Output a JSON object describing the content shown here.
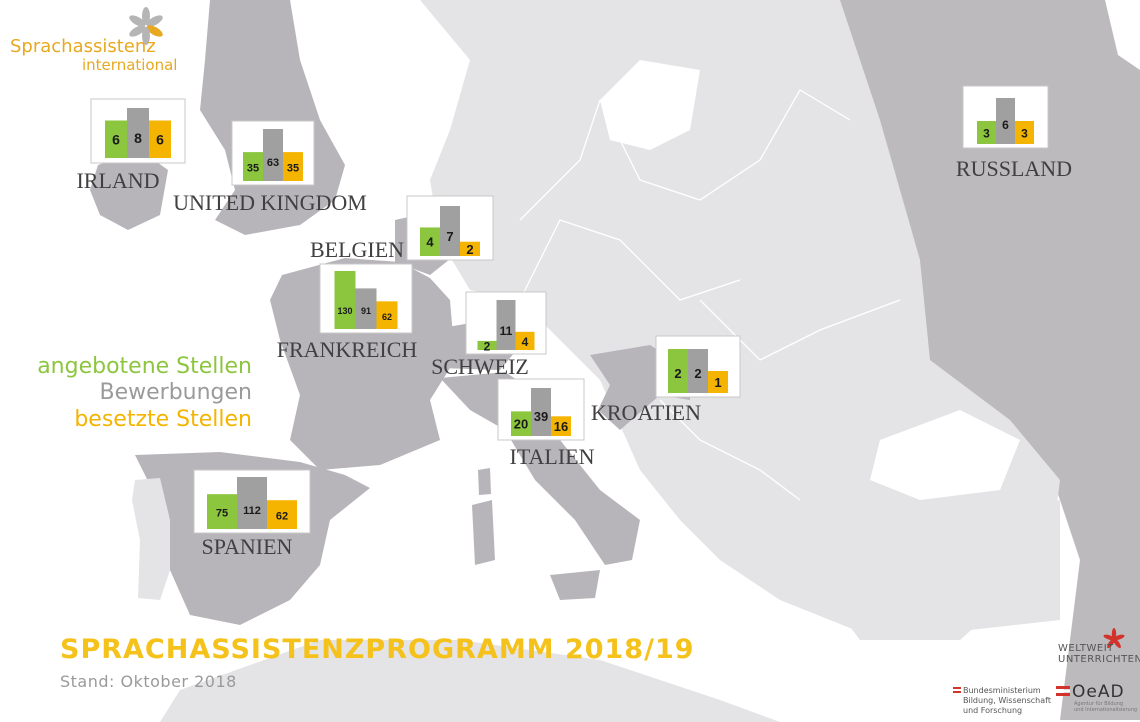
{
  "brand": {
    "line1": "Sprachassistenz",
    "line2": "international"
  },
  "title": "SPRACHASSISTENZPROGRAMM 2018/19",
  "subtitle": "Stand: Oktober 2018",
  "legend": [
    {
      "label": "angebotene Stellen",
      "color": "#8cc63f"
    },
    {
      "label": "Bewerbungen",
      "color": "#a0a0a0"
    },
    {
      "label": "besetzte Stellen",
      "color": "#f4b400"
    }
  ],
  "logos": {
    "weltweit_line1": "WELTWEIT",
    "weltweit_line2": "UNTERRICHTEN",
    "ministry_line1": "Bundesministerium",
    "ministry_line2": "Bildung, Wissenschaft",
    "ministry_line3": "und Forschung",
    "oead": "OeAD",
    "oead_sub1": "Agentur für Bildung",
    "oead_sub2": "und Internationalisierung"
  },
  "chart_data": {
    "type": "bar",
    "series": [
      {
        "name": "angebotene Stellen",
        "color": "#8cc63f"
      },
      {
        "name": "Bewerbungen",
        "color": "#a0a0a0"
      },
      {
        "name": "besetzte Stellen",
        "color": "#f4b400"
      }
    ],
    "countries": [
      {
        "name": "IRLAND",
        "values": [
          6,
          8,
          6
        ]
      },
      {
        "name": "UNITED KINGDOM",
        "values": [
          35,
          63,
          35
        ]
      },
      {
        "name": "BELGIEN",
        "values": [
          4,
          7,
          2
        ]
      },
      {
        "name": "FRANKREICH",
        "values": [
          130,
          91,
          62
        ]
      },
      {
        "name": "SCHWEIZ",
        "values": [
          2,
          11,
          4
        ]
      },
      {
        "name": "ITALIEN",
        "values": [
          20,
          39,
          16
        ]
      },
      {
        "name": "KROATIEN",
        "values": [
          2,
          2,
          1
        ]
      },
      {
        "name": "SPANIEN",
        "values": [
          75,
          112,
          62
        ]
      },
      {
        "name": "RUSSLAND",
        "values": [
          3,
          6,
          3
        ]
      }
    ]
  }
}
